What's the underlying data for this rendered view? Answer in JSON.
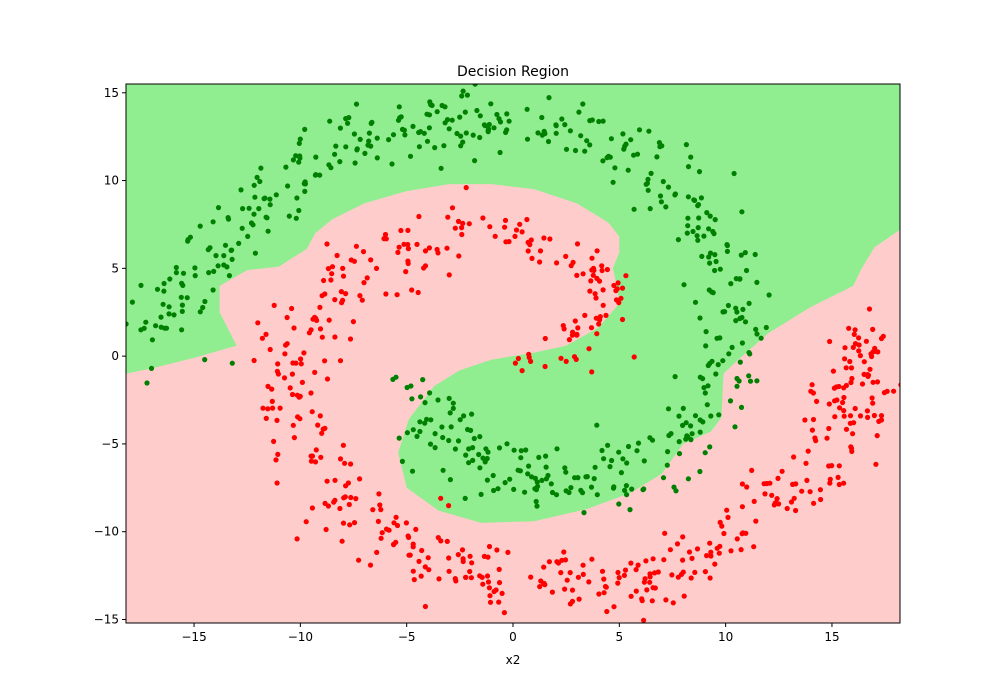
{
  "chart_data": {
    "type": "scatter",
    "title": "Decision Region",
    "xlabel": "x2",
    "ylabel": "",
    "xlim": [
      -18.2,
      18.2
    ],
    "ylim": [
      -15.2,
      15.5
    ],
    "x_ticks": [
      -15,
      -10,
      -5,
      0,
      5,
      10,
      15
    ],
    "y_ticks": [
      -15,
      -10,
      -5,
      0,
      5,
      10,
      15
    ],
    "grid": false,
    "colors": {
      "region_class_0": "#ffcccc",
      "region_class_1": "#90ee90",
      "points_class_0": "#ff0000",
      "points_class_1": "#008000"
    },
    "regions": {
      "class_1_upper": [
        [
          -18.2,
          -1.0
        ],
        [
          -17,
          -0.7
        ],
        [
          -15,
          -0.1
        ],
        [
          -13,
          0.6
        ],
        [
          -13.8,
          2.5
        ],
        [
          -13.8,
          4.0
        ],
        [
          -12.5,
          4.9
        ],
        [
          -11.0,
          5.1
        ],
        [
          -10.5,
          5.5
        ],
        [
          -9.7,
          6.1
        ],
        [
          -9.3,
          7.0
        ],
        [
          -8.5,
          7.8
        ],
        [
          -7,
          8.7
        ],
        [
          -5,
          9.4
        ],
        [
          -3,
          9.8
        ],
        [
          -1,
          9.8
        ],
        [
          1,
          9.5
        ],
        [
          3,
          8.7
        ],
        [
          4.5,
          7.6
        ],
        [
          5.0,
          6.8
        ],
        [
          5.0,
          5.9
        ],
        [
          4.7,
          5.0
        ],
        [
          4.9,
          3.9
        ],
        [
          5.0,
          3.0
        ],
        [
          4.0,
          1.6
        ],
        [
          2.5,
          0.6
        ],
        [
          1.0,
          0.2
        ],
        [
          -1,
          -0.2
        ],
        [
          -2.5,
          -0.8
        ],
        [
          -3.7,
          -1.7
        ],
        [
          -4.9,
          -3.6
        ],
        [
          -5.4,
          -5.5
        ],
        [
          -5.0,
          -7.5
        ],
        [
          -3.5,
          -8.8
        ],
        [
          -1.5,
          -9.5
        ],
        [
          1,
          -9.4
        ],
        [
          3.5,
          -8.7
        ],
        [
          5.5,
          -7.8
        ],
        [
          7.0,
          -6.7
        ],
        [
          8.0,
          -5.0
        ],
        [
          9.3,
          -4.3
        ],
        [
          9.8,
          -3.5
        ],
        [
          9.9,
          -1.0
        ],
        [
          10.5,
          -0.3
        ],
        [
          12,
          1.3
        ],
        [
          14,
          2.8
        ],
        [
          16,
          4.0
        ],
        [
          16.4,
          5.0
        ],
        [
          17,
          6.2
        ],
        [
          18.2,
          7.2
        ],
        [
          18.2,
          15.5
        ],
        [
          -18.2,
          15.5
        ]
      ]
    },
    "series": [
      {
        "class": "0",
        "arms": [
          {
            "path": [
              [
                -3.8,
                8.0
              ],
              [
                -1.5,
                7.6
              ],
              [
                0.5,
                6.8
              ],
              [
                2.5,
                5.6
              ],
              [
                4.2,
                4.8
              ],
              [
                5.1,
                4.3
              ],
              [
                4.0,
                2.6
              ],
              [
                3.0,
                1.0
              ],
              [
                1.5,
                0.0
              ],
              [
                0.5,
                -0.6
              ]
            ],
            "n": 90,
            "spread": 0.55
          },
          {
            "path": [
              [
                -3.5,
                6.1
              ],
              [
                -6.0,
                5.6
              ],
              [
                -8.0,
                4.3
              ],
              [
                -9.6,
                2.2
              ],
              [
                -10.4,
                0.0
              ],
              [
                -10.5,
                -2.5
              ],
              [
                -9.8,
                -5.0
              ],
              [
                -8.8,
                -7.0
              ],
              [
                -7.2,
                -9.0
              ],
              [
                -5.0,
                -11.0
              ],
              [
                -2.5,
                -12.3
              ],
              [
                0.0,
                -12.9
              ],
              [
                2.5,
                -13.1
              ],
              [
                5.0,
                -13.0
              ],
              [
                7.5,
                -12.0
              ],
              [
                10.0,
                -10.3
              ],
              [
                12.3,
                -8.5
              ],
              [
                14.0,
                -6.5
              ],
              [
                15.3,
                -4.5
              ],
              [
                16.0,
                -2.5
              ],
              [
                16.2,
                -0.5
              ],
              [
                17.0,
                1.8
              ]
            ],
            "n": 460,
            "spread": 0.95
          }
        ],
        "outliers": [
          [
            -12.0,
            1.9
          ],
          [
            -2.2,
            9.6
          ],
          [
            -3.4,
            -8.1
          ],
          [
            2.5,
            -0.3
          ],
          [
            3.7,
            -0.9
          ],
          [
            5.7,
            -0.05
          ],
          [
            3.0,
            1.2
          ],
          [
            17.9,
            -2.0
          ]
        ]
      },
      {
        "class": "1",
        "arms": [
          {
            "path": [
              [
                -17.0,
                1.3
              ],
              [
                -16.0,
                2.6
              ],
              [
                -15.0,
                4.4
              ],
              [
                -13.8,
                6.3
              ],
              [
                -12.5,
                8.2
              ],
              [
                -11.0,
                9.8
              ],
              [
                -9.0,
                11.0
              ],
              [
                -7.0,
                12.1
              ],
              [
                -5.0,
                12.8
              ],
              [
                -3.0,
                13.3
              ],
              [
                -1.0,
                13.4
              ],
              [
                1.0,
                13.2
              ],
              [
                3.0,
                12.6
              ],
              [
                5.0,
                11.6
              ],
              [
                7.0,
                10.3
              ],
              [
                8.5,
                8.5
              ],
              [
                9.6,
                6.3
              ],
              [
                10.3,
                4.0
              ],
              [
                10.4,
                1.5
              ],
              [
                10.0,
                -1.0
              ],
              [
                9.1,
                -3.4
              ],
              [
                7.8,
                -5.0
              ],
              [
                6.0,
                -6.2
              ],
              [
                4.0,
                -6.9
              ],
              [
                2.0,
                -7.1
              ],
              [
                0.0,
                -6.9
              ],
              [
                -1.8,
                -6.0
              ],
              [
                -3.0,
                -4.9
              ],
              [
                -3.8,
                -3.6
              ],
              [
                -4.6,
                -2.0
              ]
            ],
            "n": 520,
            "spread": 0.95
          }
        ],
        "outliers": [
          [
            -17.5,
            1.5
          ],
          [
            -17.0,
            -0.7
          ],
          [
            -13.2,
            -0.4
          ],
          [
            -14.5,
            -0.2
          ],
          [
            -4.8,
            -1.7
          ],
          [
            10.4,
            10.4
          ],
          [
            11.1,
            0.2
          ],
          [
            3.1,
            13.9
          ],
          [
            -3.2,
            14.2
          ]
        ]
      }
    ]
  }
}
